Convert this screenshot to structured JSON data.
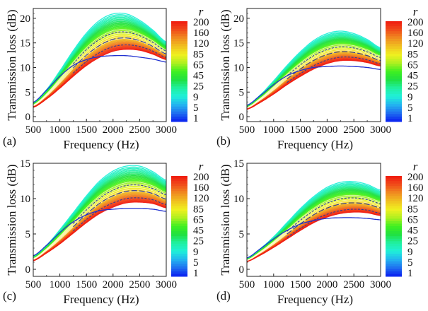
{
  "figure": {
    "colorbar": {
      "title": "r",
      "tick_labels": [
        "200",
        "160",
        "120",
        "85",
        "65",
        "45",
        "25",
        "9",
        "5",
        "1"
      ],
      "colormap": [
        "#0a1ef0",
        "#1f6ef0",
        "#23b4f0",
        "#20f0d8",
        "#20f0a0",
        "#20e040",
        "#40f020",
        "#b0f020",
        "#f0f020",
        "#f0c020",
        "#f08a20",
        "#f04a1a",
        "#f01a10"
      ]
    }
  },
  "chart_data": [
    {
      "type": "line",
      "panel_label": "(a)",
      "xlabel": "Frequency (Hz)",
      "ylabel": "Transmission loss (dB)",
      "xlim": [
        500,
        3000
      ],
      "ylim": [
        -1,
        22
      ],
      "xticks": [
        500,
        1000,
        1500,
        2000,
        2500,
        3000
      ],
      "yticks": [
        0,
        5,
        10,
        15,
        20
      ],
      "grid": false,
      "legend": "colorbar-right",
      "series_summary": {
        "r_range": [
          1,
          200
        ],
        "r1_curve": {
          "x": [
            500,
            750,
            1000,
            1250,
            1500,
            1750,
            2000,
            2250,
            2500,
            2750,
            3000
          ],
          "y": [
            2.9,
            5.4,
            8.2,
            10.4,
            11.6,
            12.2,
            12.4,
            12.4,
            12.1,
            11.7,
            11.1
          ]
        },
        "r_min_colored_top": {
          "x": [
            500,
            750,
            1000,
            1250,
            1500,
            1750,
            2000,
            2250,
            2500,
            2750,
            3000
          ],
          "y": [
            2.8,
            5.5,
            9.3,
            13.4,
            17.0,
            19.6,
            20.9,
            20.9,
            19.6,
            17.6,
            15.2
          ]
        },
        "r200_bottom": {
          "x": [
            500,
            750,
            1000,
            1250,
            1500,
            1750,
            2000,
            2250,
            2500,
            2750,
            3000
          ],
          "y": [
            1.9,
            3.6,
            5.8,
            8.2,
            10.4,
            12.1,
            13.3,
            13.7,
            13.5,
            12.7,
            11.6
          ]
        },
        "dashed_curves_peak": [
          17.2,
          16.0,
          14.6
        ]
      }
    },
    {
      "type": "line",
      "panel_label": "(b)",
      "xlabel": "Frequency (Hz)",
      "ylabel": "Transmission loss (dB)",
      "xlim": [
        500,
        3000
      ],
      "ylim": [
        -1,
        22
      ],
      "xticks": [
        500,
        1000,
        1500,
        2000,
        2500,
        3000
      ],
      "yticks": [
        0,
        5,
        10,
        15,
        20
      ],
      "grid": false,
      "legend": "colorbar-right",
      "series_summary": {
        "r_range": [
          1,
          200
        ],
        "r1_curve": {
          "x": [
            500,
            750,
            1000,
            1250,
            1500,
            1750,
            2000,
            2250,
            2500,
            2750,
            3000
          ],
          "y": [
            2.3,
            4.3,
            6.5,
            8.3,
            9.4,
            10.0,
            10.2,
            10.3,
            10.2,
            10.0,
            9.6
          ]
        },
        "r_min_colored_top": {
          "x": [
            500,
            750,
            1000,
            1250,
            1500,
            1750,
            2000,
            2250,
            2500,
            2750,
            3000
          ],
          "y": [
            2.2,
            4.4,
            7.3,
            10.4,
            13.2,
            15.5,
            16.9,
            17.4,
            16.9,
            15.7,
            14.0
          ]
        },
        "r200_bottom": {
          "x": [
            500,
            750,
            1000,
            1250,
            1500,
            1750,
            2000,
            2250,
            2500,
            2750,
            3000
          ],
          "y": [
            1.5,
            2.9,
            4.6,
            6.5,
            8.2,
            9.7,
            10.8,
            11.4,
            11.4,
            11.0,
            10.3
          ]
        },
        "dashed_curves_peak": [
          14.2,
          13.2,
          12.1
        ]
      }
    },
    {
      "type": "line",
      "panel_label": "(c)",
      "xlabel": "Frequency (Hz)",
      "ylabel": "Transmission loss (dB)",
      "xlim": [
        500,
        3000
      ],
      "ylim": [
        -1,
        15
      ],
      "xticks": [
        500,
        1000,
        1500,
        2000,
        2500,
        3000
      ],
      "yticks": [
        0,
        5,
        10,
        15
      ],
      "grid": false,
      "legend": "colorbar-right",
      "series_summary": {
        "r_range": [
          1,
          200
        ],
        "r1_curve": {
          "x": [
            500,
            750,
            1000,
            1250,
            1500,
            1750,
            2000,
            2250,
            2500,
            2750,
            3000
          ],
          "y": [
            1.9,
            3.4,
            5.2,
            6.7,
            7.7,
            8.3,
            8.5,
            8.6,
            8.6,
            8.5,
            8.2
          ]
        },
        "r_min_colored_top": {
          "x": [
            500,
            750,
            1000,
            1250,
            1500,
            1750,
            2000,
            2250,
            2500,
            2750,
            3000
          ],
          "y": [
            1.8,
            3.4,
            5.6,
            8.0,
            10.4,
            12.5,
            13.9,
            14.6,
            14.6,
            13.8,
            12.6
          ]
        },
        "r200_bottom": {
          "x": [
            500,
            750,
            1000,
            1250,
            1500,
            1750,
            2000,
            2250,
            2500,
            2750,
            3000
          ],
          "y": [
            1.2,
            2.3,
            3.6,
            5.1,
            6.6,
            7.9,
            8.8,
            9.4,
            9.5,
            9.3,
            8.7
          ]
        },
        "dashed_curves_peak": [
          11.9,
          11.1,
          10.1
        ]
      }
    },
    {
      "type": "line",
      "panel_label": "(d)",
      "xlabel": "Frequency (Hz)",
      "ylabel": "Transmission loss (dB)",
      "xlim": [
        500,
        3000
      ],
      "ylim": [
        -1,
        15
      ],
      "xticks": [
        500,
        1000,
        1500,
        2000,
        2500,
        3000
      ],
      "yticks": [
        0,
        5,
        10,
        15
      ],
      "grid": false,
      "legend": "colorbar-right",
      "series_summary": {
        "r_range": [
          1,
          200
        ],
        "r1_curve": {
          "x": [
            500,
            750,
            1000,
            1250,
            1500,
            1750,
            2000,
            2250,
            2500,
            2750,
            3000
          ],
          "y": [
            1.6,
            2.9,
            4.3,
            5.5,
            6.4,
            6.9,
            7.2,
            7.3,
            7.3,
            7.2,
            7.0
          ]
        },
        "r_min_colored_top": {
          "x": [
            500,
            750,
            1000,
            1250,
            1500,
            1750,
            2000,
            2250,
            2500,
            2750,
            3000
          ],
          "y": [
            1.5,
            2.9,
            4.6,
            6.6,
            8.6,
            10.3,
            11.6,
            12.3,
            12.4,
            12.0,
            11.2
          ]
        },
        "r200_bottom": {
          "x": [
            500,
            750,
            1000,
            1250,
            1500,
            1750,
            2000,
            2250,
            2500,
            2750,
            3000
          ],
          "y": [
            1.1,
            2.0,
            3.1,
            4.3,
            5.5,
            6.6,
            7.4,
            7.9,
            8.1,
            8.0,
            7.6
          ]
        },
        "dashed_curves_peak": [
          10.1,
          9.4,
          8.5
        ]
      }
    }
  ]
}
